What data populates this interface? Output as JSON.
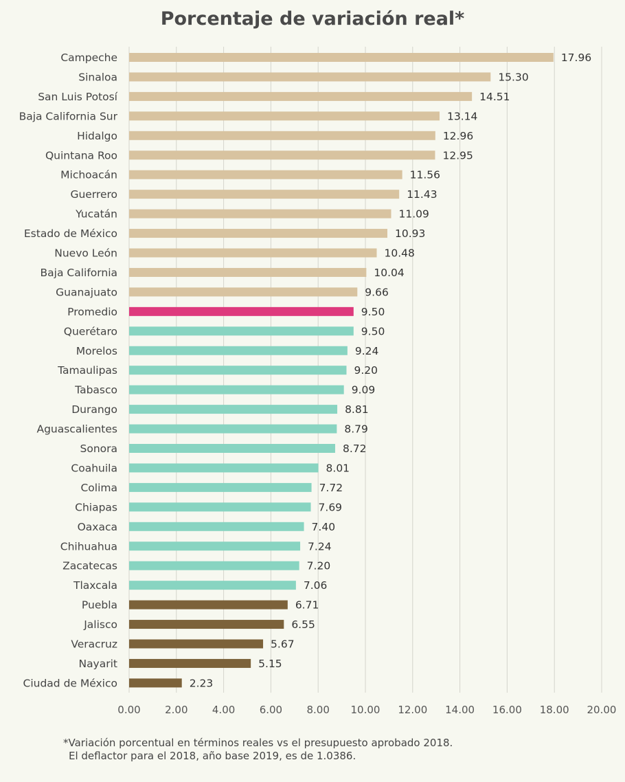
{
  "chart_data": {
    "type": "bar",
    "orientation": "horizontal",
    "title": "Porcentaje de variación real*",
    "categories": [
      "Campeche",
      "Sinaloa",
      "San Luis Potosí",
      "Baja California Sur",
      "Hidalgo",
      "Quintana Roo",
      "Michoacán",
      "Guerrero",
      "Yucatán",
      "Estado de México",
      "Nuevo León",
      "Baja California",
      "Guanajuato",
      "Promedio",
      "Querétaro",
      "Morelos",
      "Tamaulipas",
      "Tabasco",
      "Durango",
      "Aguascalientes",
      "Sonora",
      "Coahuila",
      "Colima",
      "Chiapas",
      "Oaxaca",
      "Chihuahua",
      "Zacatecas",
      "Tlaxcala",
      "Puebla",
      "Jalisco",
      "Veracruz",
      "Nayarit",
      "Ciudad de México"
    ],
    "values": [
      17.96,
      15.3,
      14.51,
      13.14,
      12.96,
      12.95,
      11.56,
      11.43,
      11.09,
      10.93,
      10.48,
      10.04,
      9.66,
      9.5,
      9.5,
      9.24,
      9.2,
      9.09,
      8.81,
      8.79,
      8.72,
      8.01,
      7.72,
      7.69,
      7.4,
      7.24,
      7.2,
      7.06,
      6.71,
      6.55,
      5.67,
      5.15,
      2.23
    ],
    "value_labels": [
      "17.96",
      "15.30",
      "14.51",
      "13.14",
      "12.96",
      "12.95",
      "11.56",
      "11.43",
      "11.09",
      "10.93",
      "10.48",
      "10.04",
      "9.66",
      "9.50",
      "9.50",
      "9.24",
      "9.20",
      "9.09",
      "8.81",
      "8.79",
      "8.72",
      "8.01",
      "7.72",
      "7.69",
      "7.40",
      "7.24",
      "7.20",
      "7.06",
      "6.71",
      "6.55",
      "5.67",
      "5.15",
      "2.23"
    ],
    "groups": [
      "high",
      "high",
      "high",
      "high",
      "high",
      "high",
      "high",
      "high",
      "high",
      "high",
      "high",
      "high",
      "high",
      "average",
      "mid",
      "mid",
      "mid",
      "mid",
      "mid",
      "mid",
      "mid",
      "mid",
      "mid",
      "mid",
      "mid",
      "mid",
      "mid",
      "mid",
      "low",
      "low",
      "low",
      "low",
      "low"
    ],
    "group_colors": {
      "high": "#d8c3a0",
      "average": "#de3a7d",
      "mid": "#88d4c1",
      "low": "#7c623a"
    },
    "xlim": [
      0,
      20
    ],
    "xticks": [
      0,
      2,
      4,
      6,
      8,
      10,
      12,
      14,
      16,
      18,
      20
    ],
    "xtick_labels": [
      "0.00",
      "2.00",
      "4.00",
      "6.00",
      "8.00",
      "10.00",
      "12.00",
      "14.00",
      "16.00",
      "18.00",
      "20.00"
    ],
    "grid": "vertical",
    "xlabel": "",
    "ylabel": ""
  },
  "footnote": {
    "line1": "*Variación porcentual en términos reales vs el presupuesto aprobado 2018.",
    "line2": "El deflactor para el 2018, año base 2019, es de 1.0386."
  }
}
